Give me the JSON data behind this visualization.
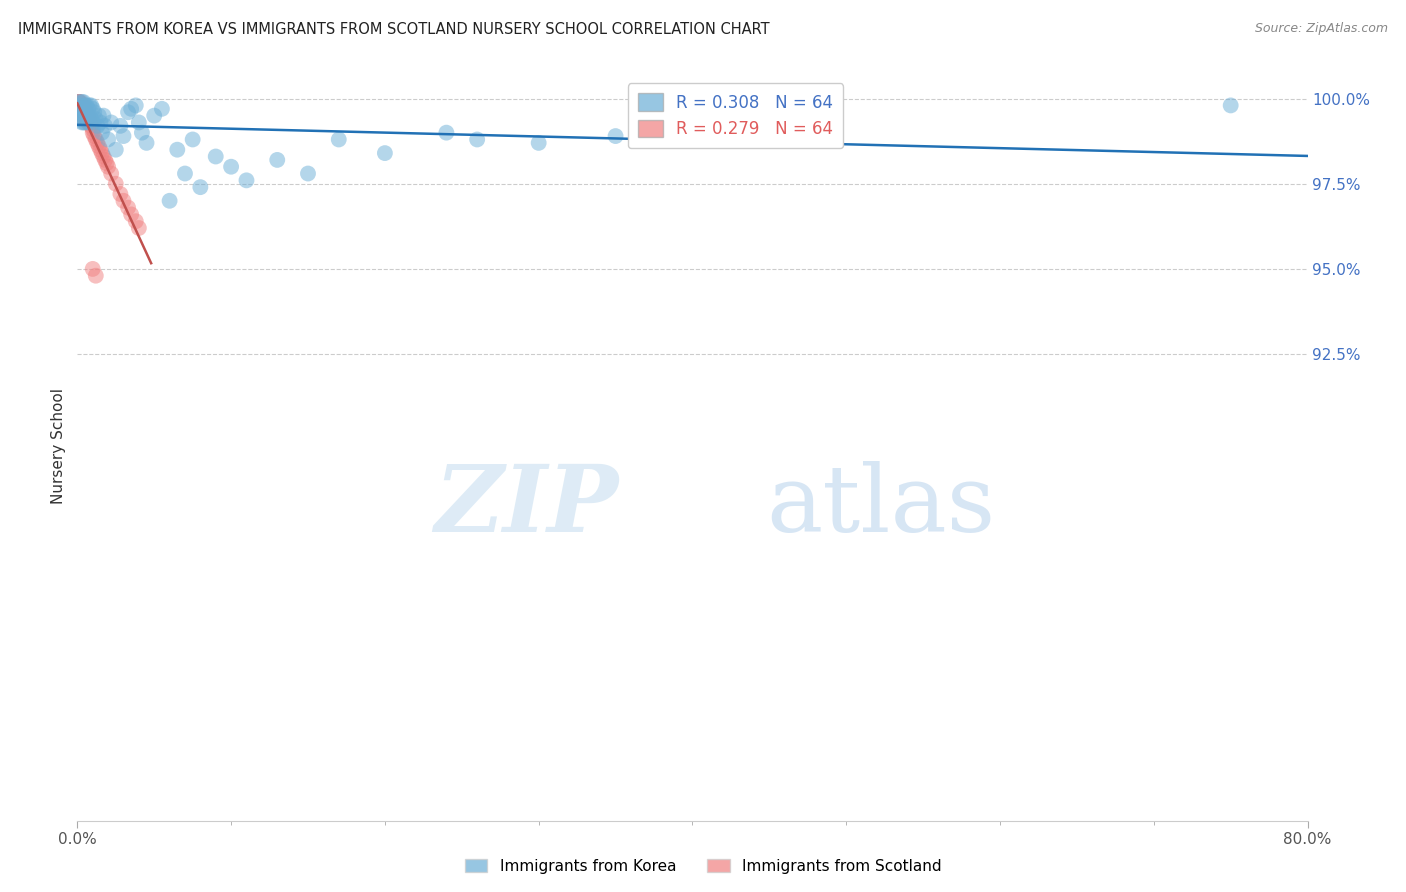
{
  "title": "IMMIGRANTS FROM KOREA VS IMMIGRANTS FROM SCOTLAND NURSERY SCHOOL CORRELATION CHART",
  "source": "Source: ZipAtlas.com",
  "ylabel": "Nursery School",
  "xlim": [
    0.0,
    0.8
  ],
  "ylim": [
    0.788,
    1.008
  ],
  "korea_R": 0.308,
  "korea_N": 64,
  "scotland_R": 0.279,
  "scotland_N": 64,
  "korea_color": "#6baed6",
  "scotland_color": "#f08080",
  "korea_line_color": "#2171b5",
  "scotland_line_color": "#c0504d",
  "watermark_zip": "ZIP",
  "watermark_atlas": "atlas",
  "legend_label_korea": "Immigrants from Korea",
  "legend_label_scotland": "Immigrants from Scotland",
  "y_ticks": [
    1.0,
    0.975,
    0.95,
    0.925
  ],
  "y_tick_labels": [
    "100.0%",
    "97.5%",
    "95.0%",
    "92.5%"
  ],
  "korea_x": [
    0.001,
    0.001,
    0.002,
    0.002,
    0.002,
    0.003,
    0.003,
    0.003,
    0.003,
    0.004,
    0.004,
    0.004,
    0.005,
    0.005,
    0.005,
    0.006,
    0.006,
    0.007,
    0.007,
    0.008,
    0.008,
    0.009,
    0.009,
    0.01,
    0.01,
    0.011,
    0.012,
    0.013,
    0.014,
    0.015,
    0.016,
    0.017,
    0.018,
    0.02,
    0.022,
    0.025,
    0.028,
    0.03,
    0.033,
    0.035,
    0.038,
    0.04,
    0.042,
    0.045,
    0.05,
    0.055,
    0.06,
    0.065,
    0.07,
    0.075,
    0.08,
    0.09,
    0.1,
    0.11,
    0.13,
    0.15,
    0.17,
    0.2,
    0.24,
    0.26,
    0.3,
    0.35,
    0.4,
    0.75
  ],
  "korea_y": [
    0.999,
    0.997,
    0.998,
    0.996,
    0.994,
    0.999,
    0.997,
    0.995,
    0.993,
    0.999,
    0.997,
    0.993,
    0.998,
    0.996,
    0.993,
    0.998,
    0.995,
    0.997,
    0.993,
    0.998,
    0.995,
    0.998,
    0.994,
    0.997,
    0.993,
    0.996,
    0.994,
    0.992,
    0.995,
    0.993,
    0.99,
    0.995,
    0.992,
    0.988,
    0.993,
    0.985,
    0.992,
    0.989,
    0.996,
    0.997,
    0.998,
    0.993,
    0.99,
    0.987,
    0.995,
    0.997,
    0.97,
    0.985,
    0.978,
    0.988,
    0.974,
    0.983,
    0.98,
    0.976,
    0.982,
    0.978,
    0.988,
    0.984,
    0.99,
    0.988,
    0.987,
    0.989,
    0.991,
    0.998
  ],
  "scotland_x": [
    0.001,
    0.001,
    0.001,
    0.001,
    0.001,
    0.001,
    0.001,
    0.001,
    0.001,
    0.002,
    0.002,
    0.002,
    0.002,
    0.002,
    0.002,
    0.002,
    0.002,
    0.003,
    0.003,
    0.003,
    0.003,
    0.003,
    0.003,
    0.004,
    0.004,
    0.004,
    0.004,
    0.004,
    0.005,
    0.005,
    0.005,
    0.005,
    0.006,
    0.006,
    0.006,
    0.007,
    0.007,
    0.007,
    0.008,
    0.008,
    0.009,
    0.009,
    0.01,
    0.01,
    0.011,
    0.012,
    0.013,
    0.014,
    0.015,
    0.016,
    0.017,
    0.018,
    0.019,
    0.02,
    0.022,
    0.025,
    0.028,
    0.03,
    0.033,
    0.035,
    0.038,
    0.04,
    0.01,
    0.012
  ],
  "scotland_y": [
    0.999,
    0.999,
    0.999,
    0.999,
    0.998,
    0.998,
    0.998,
    0.997,
    0.997,
    0.999,
    0.998,
    0.998,
    0.997,
    0.997,
    0.996,
    0.996,
    0.995,
    0.998,
    0.998,
    0.997,
    0.997,
    0.996,
    0.995,
    0.998,
    0.997,
    0.996,
    0.995,
    0.994,
    0.997,
    0.996,
    0.995,
    0.994,
    0.996,
    0.995,
    0.994,
    0.995,
    0.994,
    0.993,
    0.994,
    0.993,
    0.993,
    0.992,
    0.991,
    0.99,
    0.989,
    0.988,
    0.987,
    0.986,
    0.985,
    0.984,
    0.983,
    0.982,
    0.981,
    0.98,
    0.978,
    0.975,
    0.972,
    0.97,
    0.968,
    0.966,
    0.964,
    0.962,
    0.95,
    0.948
  ]
}
